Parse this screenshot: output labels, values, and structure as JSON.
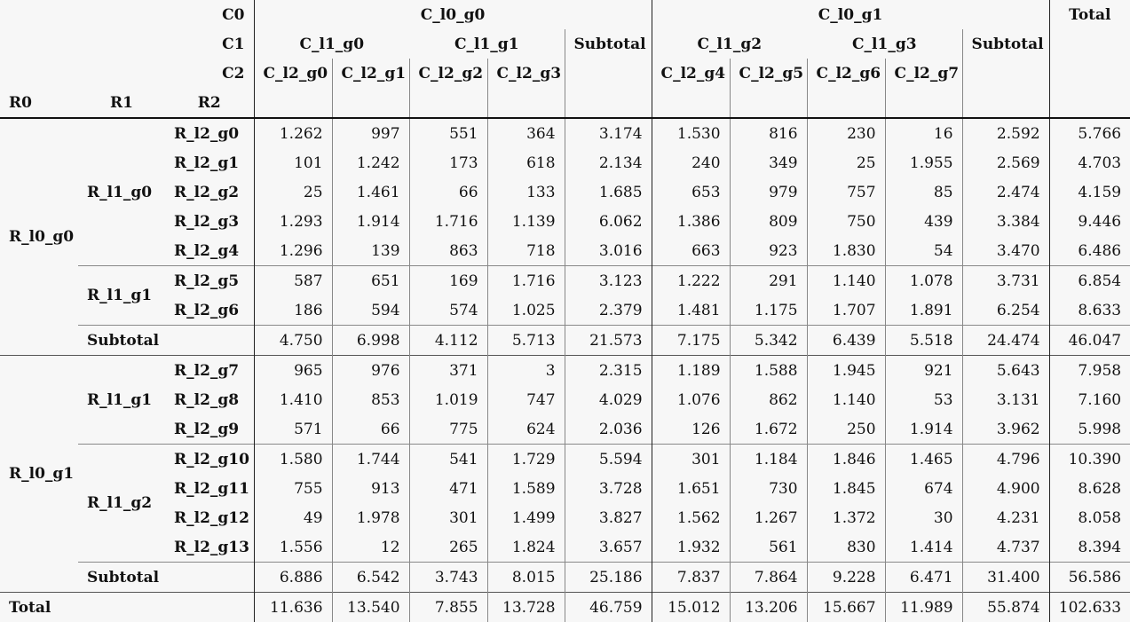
{
  "header": {
    "c0": "C0",
    "c1": "C1",
    "c2": "C2",
    "r0": "R0",
    "r1": "R1",
    "r2": "R2",
    "col_l0": [
      "C_l0_g0",
      "C_l0_g1"
    ],
    "total": "Total",
    "col_l1": [
      "C_l1_g0",
      "C_l1_g1",
      "C_l1_g2",
      "C_l1_g3"
    ],
    "subtotal": "Subtotal",
    "col_l2": [
      "C_l2_g0",
      "C_l2_g1",
      "C_l2_g2",
      "C_l2_g3",
      "C_l2_g4",
      "C_l2_g5",
      "C_l2_g6",
      "C_l2_g7"
    ]
  },
  "groups": [
    {
      "r0": "R_l0_g0",
      "subgroups": [
        {
          "r1": "R_l1_g0",
          "rows": [
            {
              "r2": "R_l2_g0",
              "v": [
                "1.262",
                "997",
                "551",
                "364",
                "3.174",
                "1.530",
                "816",
                "230",
                "16",
                "2.592",
                "5.766"
              ]
            },
            {
              "r2": "R_l2_g1",
              "v": [
                "101",
                "1.242",
                "173",
                "618",
                "2.134",
                "240",
                "349",
                "25",
                "1.955",
                "2.569",
                "4.703"
              ]
            },
            {
              "r2": "R_l2_g2",
              "v": [
                "25",
                "1.461",
                "66",
                "133",
                "1.685",
                "653",
                "979",
                "757",
                "85",
                "2.474",
                "4.159"
              ]
            },
            {
              "r2": "R_l2_g3",
              "v": [
                "1.293",
                "1.914",
                "1.716",
                "1.139",
                "6.062",
                "1.386",
                "809",
                "750",
                "439",
                "3.384",
                "9.446"
              ]
            },
            {
              "r2": "R_l2_g4",
              "v": [
                "1.296",
                "139",
                "863",
                "718",
                "3.016",
                "663",
                "923",
                "1.830",
                "54",
                "3.470",
                "6.486"
              ]
            }
          ]
        },
        {
          "r1": "R_l1_g1",
          "rows": [
            {
              "r2": "R_l2_g5",
              "v": [
                "587",
                "651",
                "169",
                "1.716",
                "3.123",
                "1.222",
                "291",
                "1.140",
                "1.078",
                "3.731",
                "6.854"
              ]
            },
            {
              "r2": "R_l2_g6",
              "v": [
                "186",
                "594",
                "574",
                "1.025",
                "2.379",
                "1.481",
                "1.175",
                "1.707",
                "1.891",
                "6.254",
                "8.633"
              ]
            }
          ]
        }
      ],
      "subtotal_label": "Subtotal",
      "subtotal": [
        "4.750",
        "6.998",
        "4.112",
        "5.713",
        "21.573",
        "7.175",
        "5.342",
        "6.439",
        "5.518",
        "24.474",
        "46.047"
      ]
    },
    {
      "r0": "R_l0_g1",
      "subgroups": [
        {
          "r1": "R_l1_g1",
          "rows": [
            {
              "r2": "R_l2_g7",
              "v": [
                "965",
                "976",
                "371",
                "3",
                "2.315",
                "1.189",
                "1.588",
                "1.945",
                "921",
                "5.643",
                "7.958"
              ]
            },
            {
              "r2": "R_l2_g8",
              "v": [
                "1.410",
                "853",
                "1.019",
                "747",
                "4.029",
                "1.076",
                "862",
                "1.140",
                "53",
                "3.131",
                "7.160"
              ]
            },
            {
              "r2": "R_l2_g9",
              "v": [
                "571",
                "66",
                "775",
                "624",
                "2.036",
                "126",
                "1.672",
                "250",
                "1.914",
                "3.962",
                "5.998"
              ]
            }
          ]
        },
        {
          "r1": "R_l1_g2",
          "rows": [
            {
              "r2": "R_l2_g10",
              "v": [
                "1.580",
                "1.744",
                "541",
                "1.729",
                "5.594",
                "301",
                "1.184",
                "1.846",
                "1.465",
                "4.796",
                "10.390"
              ]
            },
            {
              "r2": "R_l2_g11",
              "v": [
                "755",
                "913",
                "471",
                "1.589",
                "3.728",
                "1.651",
                "730",
                "1.845",
                "674",
                "4.900",
                "8.628"
              ]
            },
            {
              "r2": "R_l2_g12",
              "v": [
                "49",
                "1.978",
                "301",
                "1.499",
                "3.827",
                "1.562",
                "1.267",
                "1.372",
                "30",
                "4.231",
                "8.058"
              ]
            },
            {
              "r2": "R_l2_g13",
              "v": [
                "1.556",
                "12",
                "265",
                "1.824",
                "3.657",
                "1.932",
                "561",
                "830",
                "1.414",
                "4.737",
                "8.394"
              ]
            }
          ]
        }
      ],
      "subtotal_label": "Subtotal",
      "subtotal": [
        "6.886",
        "6.542",
        "3.743",
        "8.015",
        "25.186",
        "7.837",
        "7.864",
        "9.228",
        "6.471",
        "31.400",
        "56.586"
      ]
    }
  ],
  "grand_total_label": "Total",
  "grand_total": [
    "11.636",
    "13.540",
    "7.855",
    "13.728",
    "46.759",
    "15.012",
    "13.206",
    "15.667",
    "11.989",
    "55.874",
    "102.633"
  ]
}
